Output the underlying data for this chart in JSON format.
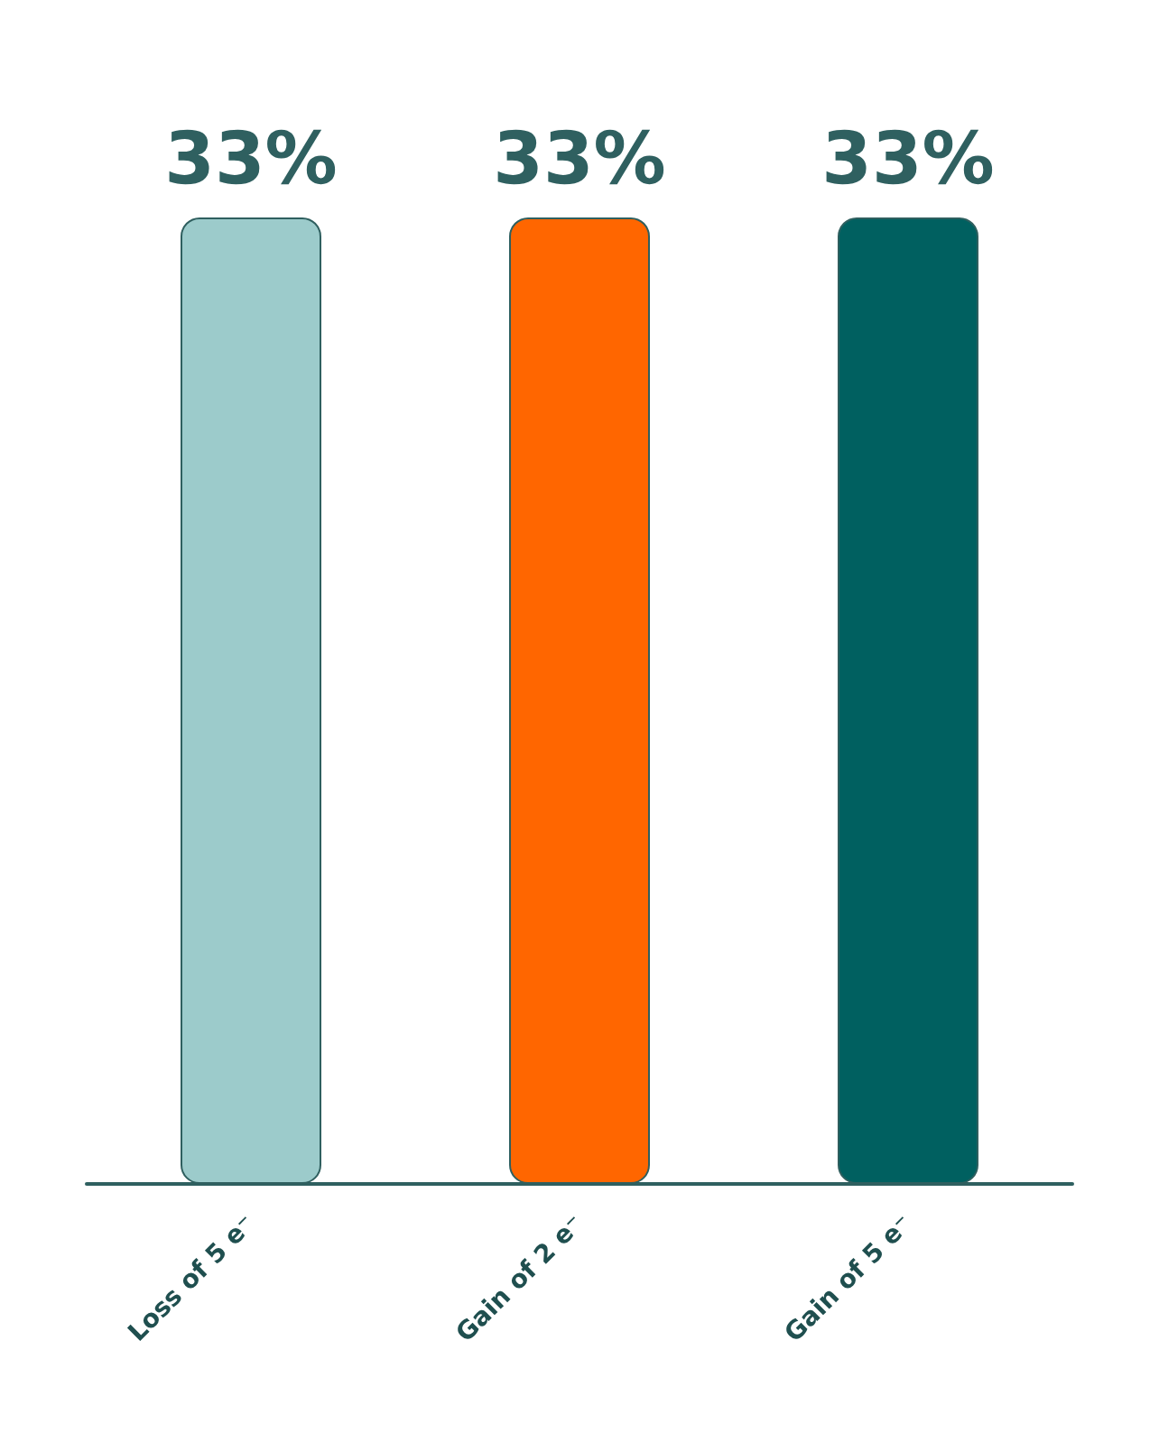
{
  "chart_data": {
    "type": "bar",
    "categories": [
      "Loss of 5 e⁻",
      "Gain of 2 e⁻",
      "Gain of 5 e⁻"
    ],
    "values": [
      33,
      33,
      33
    ],
    "colors": [
      "#9ccbcb",
      "#ff6600",
      "#006060"
    ],
    "value_labels": [
      "33%",
      "33%",
      "33%"
    ]
  }
}
